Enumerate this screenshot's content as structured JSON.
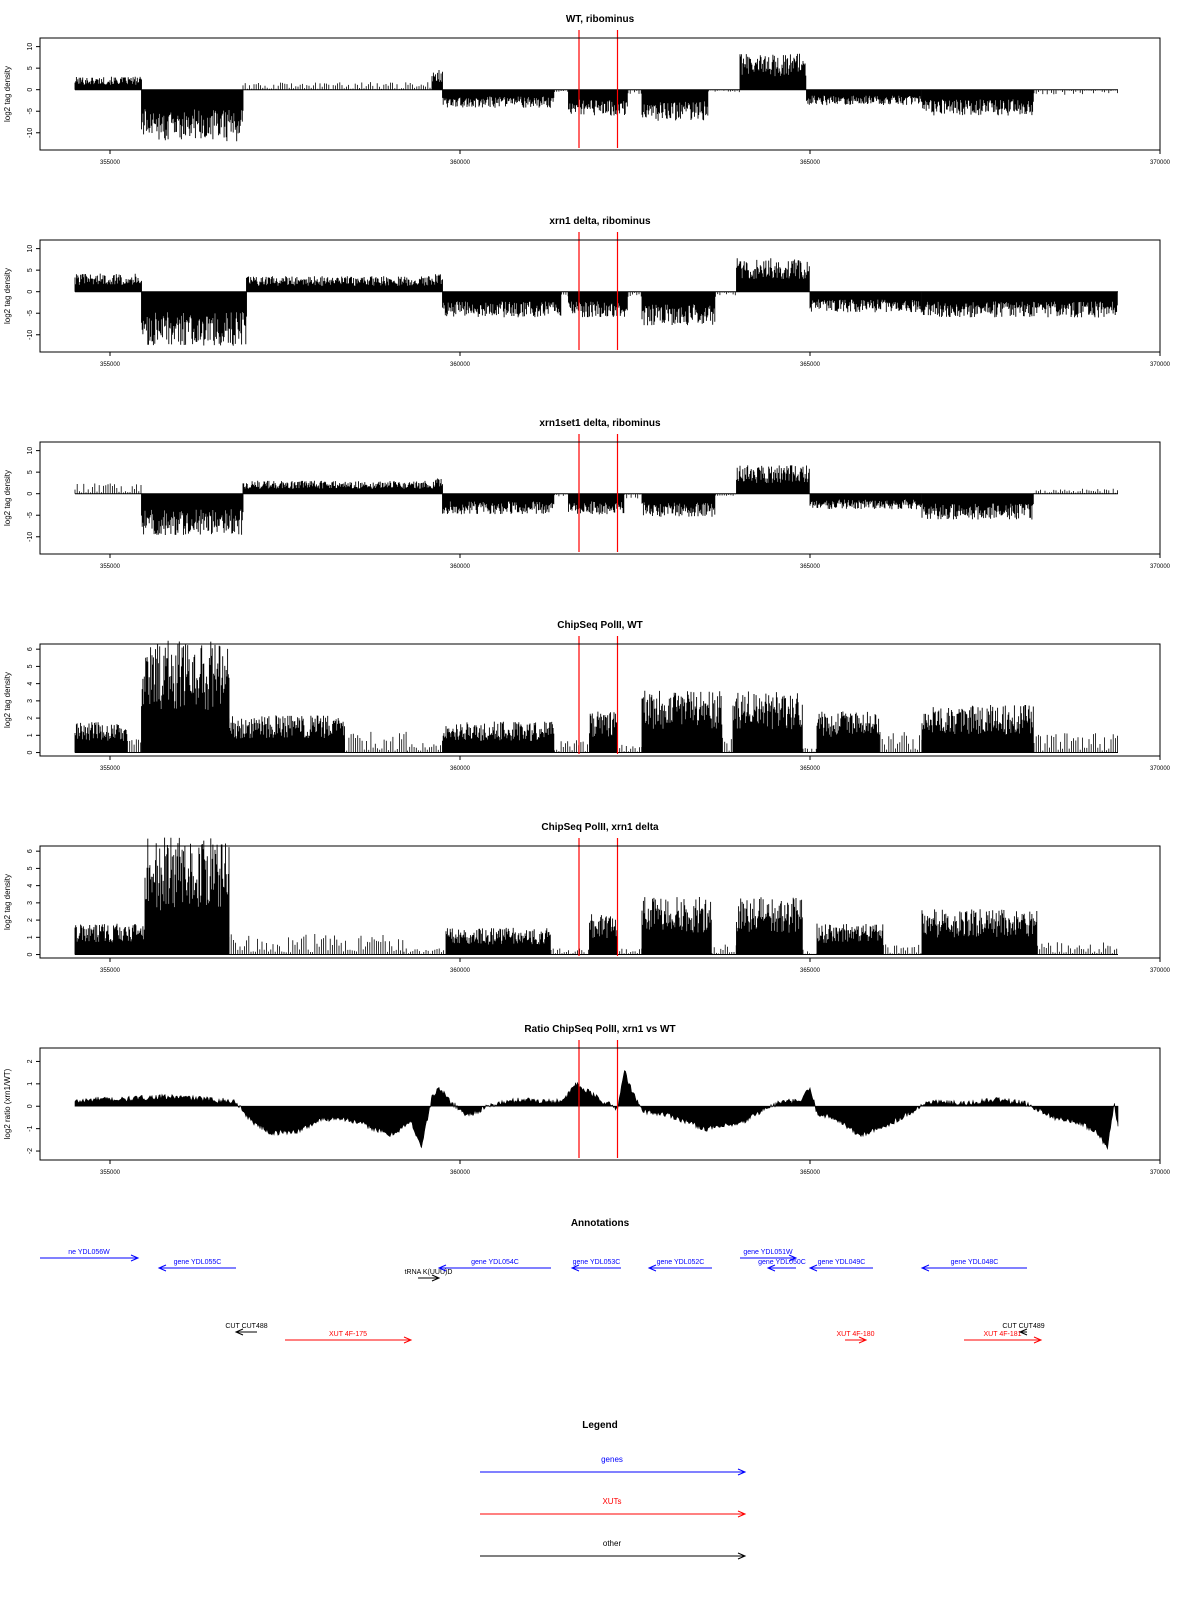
{
  "chart_data": [
    {
      "type": "bar",
      "title": "WT, ribominus",
      "ylabel": "log2 tag density",
      "ylim": [
        -14,
        12
      ],
      "yticks": [
        -10,
        -5,
        0,
        5,
        10
      ],
      "xlim": [
        354000,
        370000
      ],
      "xticks": [
        355000,
        360000,
        365000,
        370000
      ],
      "reference_lines": [
        361700,
        362250
      ],
      "reference_line_color": "#ff0000",
      "segments": [
        {
          "start": 354500,
          "end": 355450,
          "level": 2.5
        },
        {
          "start": 355450,
          "end": 356900,
          "level": -10
        },
        {
          "start": 356900,
          "end": 359600,
          "level": 1.5
        },
        {
          "start": 359600,
          "end": 359750,
          "level": 4
        },
        {
          "start": 359750,
          "end": 361350,
          "level": -3.5
        },
        {
          "start": 361350,
          "end": 361550,
          "level": -0.5
        },
        {
          "start": 361550,
          "end": 362400,
          "level": -5
        },
        {
          "start": 362400,
          "end": 362600,
          "level": -1
        },
        {
          "start": 362600,
          "end": 363550,
          "level": -6
        },
        {
          "start": 363550,
          "end": 364000,
          "level": -0.5
        },
        {
          "start": 364000,
          "end": 364950,
          "level": 7
        },
        {
          "start": 364950,
          "end": 366600,
          "level": -3
        },
        {
          "start": 366600,
          "end": 368200,
          "level": -5
        },
        {
          "start": 368200,
          "end": 369400,
          "level": -1
        }
      ]
    },
    {
      "type": "bar",
      "title": "xrn1 delta, ribominus",
      "ylabel": "log2 tag density",
      "ylim": [
        -14,
        12
      ],
      "yticks": [
        -10,
        -5,
        0,
        5,
        10
      ],
      "xlim": [
        354000,
        370000
      ],
      "xticks": [
        355000,
        360000,
        365000,
        370000
      ],
      "reference_lines": [
        361700,
        362250
      ],
      "reference_line_color": "#ff0000",
      "segments": [
        {
          "start": 354500,
          "end": 355450,
          "level": 3.5
        },
        {
          "start": 355450,
          "end": 356950,
          "level": -10.5
        },
        {
          "start": 356950,
          "end": 359650,
          "level": 3
        },
        {
          "start": 359650,
          "end": 359750,
          "level": 3.5
        },
        {
          "start": 359750,
          "end": 361450,
          "level": -5
        },
        {
          "start": 361450,
          "end": 361550,
          "level": -1
        },
        {
          "start": 361550,
          "end": 362400,
          "level": -5
        },
        {
          "start": 362400,
          "end": 362600,
          "level": -1
        },
        {
          "start": 362600,
          "end": 363650,
          "level": -6.5
        },
        {
          "start": 363650,
          "end": 363950,
          "level": -1
        },
        {
          "start": 363950,
          "end": 365000,
          "level": 6.5
        },
        {
          "start": 365000,
          "end": 366600,
          "level": -4
        },
        {
          "start": 366600,
          "end": 369400,
          "level": -5
        }
      ]
    },
    {
      "type": "bar",
      "title": "xrn1set1 delta, ribominus",
      "ylabel": "log2 tag density",
      "ylim": [
        -14,
        12
      ],
      "yticks": [
        -10,
        -5,
        0,
        5,
        10
      ],
      "xlim": [
        354000,
        370000
      ],
      "xticks": [
        355000,
        360000,
        365000,
        370000
      ],
      "reference_lines": [
        361700,
        362250
      ],
      "reference_line_color": "#ff0000",
      "segments": [
        {
          "start": 354500,
          "end": 355450,
          "level": 2
        },
        {
          "start": 355450,
          "end": 356900,
          "level": -8
        },
        {
          "start": 356900,
          "end": 359650,
          "level": 2.5
        },
        {
          "start": 359650,
          "end": 359750,
          "level": 3
        },
        {
          "start": 359750,
          "end": 361350,
          "level": -4
        },
        {
          "start": 361350,
          "end": 361550,
          "level": -0.5
        },
        {
          "start": 361550,
          "end": 362350,
          "level": -4
        },
        {
          "start": 362350,
          "end": 362600,
          "level": -1
        },
        {
          "start": 362600,
          "end": 363650,
          "level": -4.5
        },
        {
          "start": 363650,
          "end": 363950,
          "level": -0.5
        },
        {
          "start": 363950,
          "end": 365000,
          "level": 5.5
        },
        {
          "start": 365000,
          "end": 366600,
          "level": -3
        },
        {
          "start": 366600,
          "end": 368200,
          "level": -5
        },
        {
          "start": 368200,
          "end": 369400,
          "level": 1
        }
      ]
    },
    {
      "type": "bar",
      "title": "ChipSeq PolII, WT",
      "ylabel": "log2 tag density",
      "ylim": [
        -0.2,
        6.3
      ],
      "yticks": [
        0,
        1,
        2,
        3,
        4,
        5,
        6
      ],
      "xlim": [
        354000,
        370000
      ],
      "xticks": [
        355000,
        360000,
        365000,
        370000
      ],
      "reference_lines": [
        361700,
        362250
      ],
      "reference_line_color": "#ff0000",
      "segments": [
        {
          "start": 354500,
          "end": 355250,
          "level": 1.5
        },
        {
          "start": 355250,
          "end": 355450,
          "level": 1
        },
        {
          "start": 355450,
          "end": 356700,
          "level": 5.5
        },
        {
          "start": 356700,
          "end": 358350,
          "level": 1.8
        },
        {
          "start": 358350,
          "end": 359250,
          "level": 1
        },
        {
          "start": 359250,
          "end": 359750,
          "level": 0.6
        },
        {
          "start": 359750,
          "end": 361350,
          "level": 1.5
        },
        {
          "start": 361350,
          "end": 361850,
          "level": 0.6
        },
        {
          "start": 361850,
          "end": 362250,
          "level": 2
        },
        {
          "start": 362250,
          "end": 362600,
          "level": 0.4
        },
        {
          "start": 362600,
          "end": 363750,
          "level": 3
        },
        {
          "start": 363750,
          "end": 363900,
          "level": 1
        },
        {
          "start": 363900,
          "end": 364900,
          "level": 3
        },
        {
          "start": 364900,
          "end": 365100,
          "level": 0.3
        },
        {
          "start": 365100,
          "end": 366000,
          "level": 2
        },
        {
          "start": 366000,
          "end": 366600,
          "level": 1
        },
        {
          "start": 366600,
          "end": 368200,
          "level": 2.3
        },
        {
          "start": 368200,
          "end": 369400,
          "level": 1
        }
      ]
    },
    {
      "type": "bar",
      "title": "ChipSeq PolII, xrn1 delta",
      "ylabel": "log2 tag density",
      "ylim": [
        -0.2,
        6.3
      ],
      "yticks": [
        0,
        1,
        2,
        3,
        4,
        5,
        6
      ],
      "xlim": [
        354000,
        370000
      ],
      "xticks": [
        355000,
        360000,
        365000,
        370000
      ],
      "reference_lines": [
        361700,
        362250
      ],
      "reference_line_color": "#ff0000",
      "segments": [
        {
          "start": 354500,
          "end": 355500,
          "level": 1.5
        },
        {
          "start": 355500,
          "end": 356700,
          "level": 5.7
        },
        {
          "start": 356700,
          "end": 359200,
          "level": 1
        },
        {
          "start": 359200,
          "end": 359800,
          "level": 0.3
        },
        {
          "start": 359800,
          "end": 361300,
          "level": 1.3
        },
        {
          "start": 361300,
          "end": 361850,
          "level": 0.3
        },
        {
          "start": 361850,
          "end": 362250,
          "level": 2
        },
        {
          "start": 362250,
          "end": 362600,
          "level": 0.3
        },
        {
          "start": 362600,
          "end": 363600,
          "level": 2.8
        },
        {
          "start": 363600,
          "end": 363950,
          "level": 0.5
        },
        {
          "start": 363950,
          "end": 364900,
          "level": 2.8
        },
        {
          "start": 364900,
          "end": 365100,
          "level": 0.3
        },
        {
          "start": 365100,
          "end": 366050,
          "level": 1.5
        },
        {
          "start": 366050,
          "end": 366600,
          "level": 0.5
        },
        {
          "start": 366600,
          "end": 368250,
          "level": 2.2
        },
        {
          "start": 368250,
          "end": 369400,
          "level": 0.6
        }
      ]
    },
    {
      "type": "area",
      "title": "Ratio ChipSeq PolII, xrn1 vs WT",
      "ylabel": "log2 ratio (xrn1/WT)",
      "ylim": [
        -2.4,
        2.6
      ],
      "yticks": [
        -2,
        -1,
        0,
        1,
        2
      ],
      "xlim": [
        354000,
        370000
      ],
      "xticks": [
        355000,
        360000,
        365000,
        370000
      ],
      "reference_lines": [
        361700,
        362250
      ],
      "reference_line_color": "#ff0000",
      "x": [
        354500,
        354800,
        355200,
        355600,
        356000,
        356400,
        356800,
        357000,
        357300,
        357700,
        358000,
        358300,
        358700,
        359000,
        359300,
        359450,
        359600,
        359700,
        359900,
        360100,
        360500,
        360900,
        361300,
        361500,
        361650,
        361850,
        362050,
        362250,
        362350,
        362450,
        362600,
        363000,
        363500,
        364000,
        364300,
        364600,
        364850,
        365000,
        365100,
        365400,
        365700,
        366000,
        366300,
        366700,
        367200,
        367700,
        368100,
        368500,
        368900,
        369100,
        369250,
        369350,
        369400
      ],
      "values": [
        0.2,
        0.3,
        0.3,
        0.4,
        0.4,
        0.3,
        0.2,
        -0.6,
        -1.2,
        -1.1,
        -0.6,
        -0.5,
        -0.9,
        -1.3,
        -0.7,
        -1.8,
        0.4,
        0.8,
        0.1,
        -0.4,
        0.1,
        0.3,
        0.2,
        0.3,
        1.0,
        0.6,
        0.2,
        -0.1,
        1.6,
        0.7,
        -0.2,
        -0.4,
        -1.0,
        -0.8,
        -0.2,
        0.2,
        0.2,
        0.8,
        -0.3,
        -0.6,
        -1.3,
        -1.0,
        -0.5,
        0.2,
        0.1,
        0.3,
        0.1,
        -0.5,
        -0.8,
        -1.2,
        -1.8,
        0.1,
        -0.9
      ]
    }
  ],
  "annotations": {
    "title": "Annotations",
    "xlim": [
      354000,
      370000
    ],
    "items": [
      {
        "label": "ne YDL056W",
        "start": 354000,
        "end": 355400,
        "color": "#0000ff",
        "row": 1
      },
      {
        "label": "gene YDL055C",
        "start": 355700,
        "end": 356800,
        "color": "#0000ff",
        "row": 2
      },
      {
        "label": "tRNA K(UUU)D",
        "start": 359400,
        "end": 359700,
        "color": "#000000",
        "row": 3
      },
      {
        "label": "gene YDL054C",
        "start": 359700,
        "end": 361300,
        "color": "#0000ff",
        "row": 2
      },
      {
        "label": "gene YDL053C",
        "start": 361600,
        "end": 362300,
        "color": "#0000ff",
        "row": 2
      },
      {
        "label": "gene YDL052C",
        "start": 362700,
        "end": 363600,
        "color": "#0000ff",
        "row": 2
      },
      {
        "label": "gene YDL051W",
        "start": 364000,
        "end": 364800,
        "color": "#0000ff",
        "row": 1
      },
      {
        "label": "gene YDL050C",
        "start": 364400,
        "end": 364800,
        "color": "#0000ff",
        "row": 2
      },
      {
        "label": "gene YDL049C",
        "start": 365000,
        "end": 365900,
        "color": "#0000ff",
        "row": 2
      },
      {
        "label": "gene YDL048C",
        "start": 366600,
        "end": 368100,
        "color": "#0000ff",
        "row": 2
      },
      {
        "label": "CUT CUT488",
        "start": 356800,
        "end": 357100,
        "color": "#000000",
        "row": 5
      },
      {
        "label": "XUT 4F-175",
        "start": 357500,
        "end": 359300,
        "color": "#ff0000",
        "row": 6
      },
      {
        "label": "XUT 4F-180",
        "start": 365500,
        "end": 365800,
        "color": "#ff0000",
        "row": 6
      },
      {
        "label": "XUT 4F-181",
        "start": 367200,
        "end": 368300,
        "color": "#ff0000",
        "row": 6
      },
      {
        "label": "CUT CUT489",
        "start": 368000,
        "end": 368100,
        "color": "#000000",
        "row": 5
      }
    ]
  },
  "legend": {
    "title": "Legend",
    "entries": [
      {
        "label": "genes",
        "color": "#0000ff"
      },
      {
        "label": "XUTs",
        "color": "#ff0000"
      },
      {
        "label": "other",
        "color": "#000000"
      }
    ]
  }
}
